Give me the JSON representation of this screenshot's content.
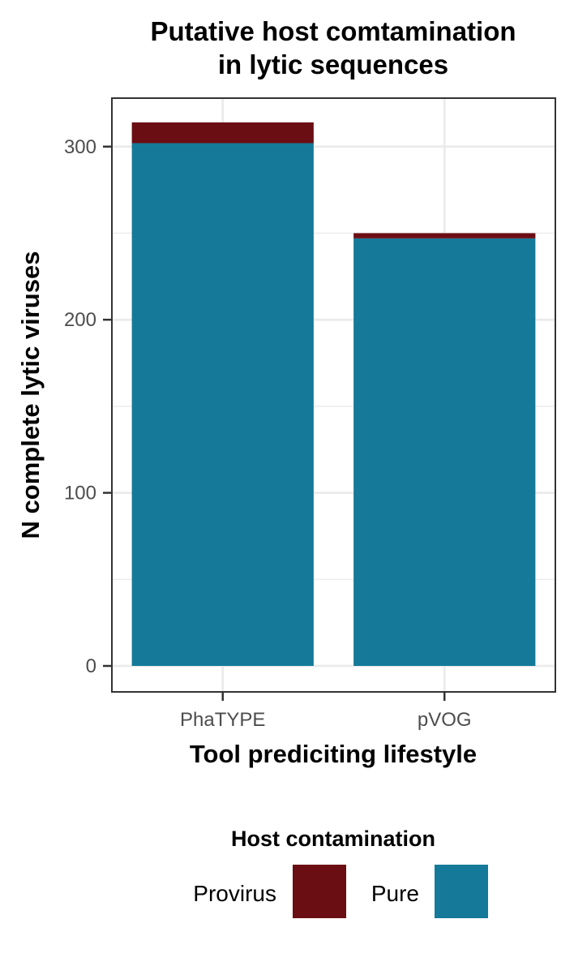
{
  "chart_data": {
    "type": "bar",
    "stacked": true,
    "title_lines": [
      "Putative host comtamination",
      "in lytic sequences"
    ],
    "xlabel": "Tool prediciting lifestyle",
    "ylabel": "N complete lytic viruses",
    "categories": [
      "PhaTYPE",
      "pVOG"
    ],
    "series": [
      {
        "name": "Pure",
        "values": [
          302,
          247
        ],
        "color": "#157a99"
      },
      {
        "name": "Provirus",
        "values": [
          12,
          3
        ],
        "color": "#6b0e14"
      }
    ],
    "ylim": [
      -15,
      328
    ],
    "y_ticks": [
      0,
      100,
      200,
      300
    ],
    "grid": true,
    "legend": {
      "title": "Host contamination",
      "placement": "bottom",
      "entries": [
        {
          "label": "Provirus",
          "color": "#6b0e14"
        },
        {
          "label": "Pure",
          "color": "#157a99"
        }
      ]
    }
  }
}
